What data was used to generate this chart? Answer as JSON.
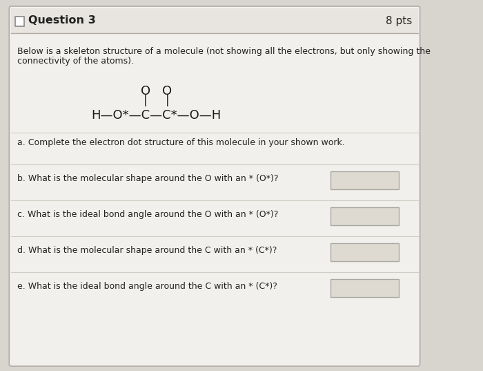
{
  "title": "Question 3",
  "pts": "8 pts",
  "description_line1": "Below is a skeleton structure of a molecule (not showing all the electrons, but only showing the",
  "description_line2": "connectivity of the atoms).",
  "questions": [
    "a. Complete the electron dot structure of this molecule in your shown work.",
    "b. What is the molecular shape around the O with an * (O*)?",
    "c. What is the ideal bond angle around the O with an * (O*)?",
    "d. What is the molecular shape around the C with an * (C*)?",
    "e. What is the ideal bond angle around the C with an * (C*)?"
  ],
  "has_input_box": [
    false,
    true,
    true,
    true,
    true
  ],
  "bg_color": "#d8d4ce",
  "card_color": "#f2f0ec",
  "header_color": "#e8e5e0",
  "border_color": "#b0aba4",
  "sep_color": "#d0ccc6",
  "text_color": "#222222",
  "input_box_color": "#dedad2",
  "input_box_border": "#aaa8a2",
  "mol_color": "#1a1a1a",
  "checkbox_color": "#888888"
}
